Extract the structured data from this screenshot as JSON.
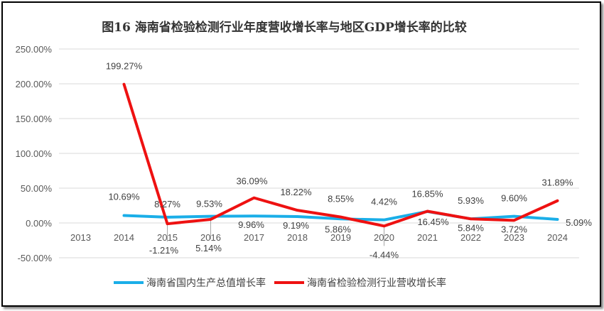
{
  "chart_data": {
    "type": "line",
    "title": "图16  海南省检验检测行业年度营收增长率与地区GDP增长率的比较",
    "categories": [
      "2013",
      "2014",
      "2015",
      "2016",
      "2017",
      "2018",
      "2019",
      "2020",
      "2021",
      "2022",
      "2023",
      "2024"
    ],
    "ylim": [
      -50,
      250
    ],
    "yticks": [
      "-50.00%",
      "0.00%",
      "50.00%",
      "100.00%",
      "150.00%",
      "200.00%",
      "250.00%"
    ],
    "grid": true,
    "legend_position": "bottom",
    "series": [
      {
        "name": "海南省国内生产总值增长率",
        "color": "#1aaee8",
        "values": [
          null,
          10.69,
          8.27,
          9.53,
          9.96,
          9.19,
          5.86,
          4.42,
          16.45,
          5.93,
          9.6,
          5.09
        ],
        "labels": [
          "",
          "10.69%",
          "8.27%",
          "9.53%",
          "9.96%",
          "9.19%",
          "5.86%",
          "4.42%",
          "16.45%",
          "5.93%",
          "9.60%",
          "5.09%"
        ]
      },
      {
        "name": "海南省检验检测行业营收增长率",
        "color": "#ee1111",
        "values": [
          null,
          199.27,
          -1.21,
          5.14,
          36.09,
          18.22,
          8.55,
          -4.44,
          16.85,
          5.84,
          3.72,
          31.89
        ],
        "labels": [
          "",
          "199.27%",
          "-1.21%",
          "5.14%",
          "36.09%",
          "18.22%",
          "8.55%",
          "-4.44%",
          "16.85%",
          "5.84%",
          "3.72%",
          "31.89%"
        ]
      }
    ]
  }
}
